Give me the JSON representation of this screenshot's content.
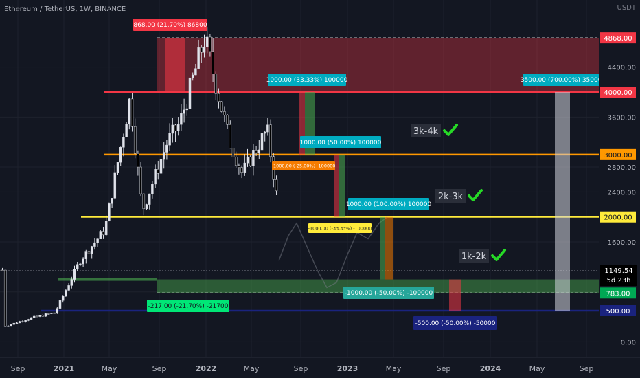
{
  "header": {
    "symbol": "Ethereum / TetherUS, 1W, BINANCE",
    "currency": "USDT"
  },
  "chart_data": {
    "type": "candlestick",
    "title": "Ethereum / TetherUS, 1W, BINANCE",
    "ylabel": "USDT",
    "ylim": [
      0,
      4868
    ],
    "y_ticks": [
      "4400.00",
      "3600.00",
      "2800.00",
      "2400.00",
      "1600.00",
      "0.00"
    ],
    "x_ticks": [
      "Sep",
      "2021",
      "May",
      "Sep",
      "2022",
      "May",
      "Sep",
      "2023",
      "May",
      "Sep",
      "2024",
      "May",
      "Sep"
    ],
    "x_ticks_bold": [
      "2021",
      "2022",
      "2023",
      "2024"
    ],
    "last_price": "1149.54",
    "countdown": "5d 23h",
    "horizontal_levels": [
      {
        "value": 4868,
        "label": "4868.00",
        "color": "#f23645"
      },
      {
        "value": 4000,
        "label": "4000.00",
        "color": "#f23645"
      },
      {
        "value": 3000,
        "label": "3000.00",
        "color": "#ff9800"
      },
      {
        "value": 2000,
        "label": "2000.00",
        "color": "#ffeb3b"
      },
      {
        "value": 1000,
        "label": "1000.00",
        "color": "#4caf50"
      },
      {
        "value": 783,
        "label": "783.00",
        "color": "#4caf50"
      },
      {
        "value": 500,
        "label": "500.00",
        "color": "#1a237e"
      }
    ],
    "zone_labels": [
      {
        "text": "3k-4k",
        "mid": 3400
      },
      {
        "text": "2k-3k",
        "mid": 2350
      },
      {
        "text": "1k-2k",
        "mid": 1380
      }
    ],
    "measure_annotations": [
      "868.00 (21.70%) 86800",
      "1000.00 (33.33%) 100000",
      "3500.00 (700.00%) 350000",
      "1000.00 (50.00%) 100000",
      "-1000.00 (-25.00%) -100000",
      "1000.00 (100.00%) 100000",
      "-1000.00 (-33.33%) -100000",
      "-217.00 (-21.70%) -21700",
      "-1000.00 (-50.00%) -100000",
      "-500.00 (-50.00%) -50000"
    ],
    "series_price_path": [
      [
        "2020-07",
        250
      ],
      [
        "2020-09",
        380
      ],
      [
        "2020-11",
        470
      ],
      [
        "2021-01",
        1300
      ],
      [
        "2021-03",
        1800
      ],
      [
        "2021-05",
        3900
      ],
      [
        "2021-06",
        2100
      ],
      [
        "2021-08",
        3200
      ],
      [
        "2021-09",
        3500
      ],
      [
        "2021-11",
        4868
      ],
      [
        "2022-01",
        3200
      ],
      [
        "2022-02",
        2700
      ],
      [
        "2022-04",
        3400
      ],
      [
        "2022-05",
        2000
      ],
      [
        "2022-06",
        1100
      ],
      [
        "2022-07",
        1149.54
      ]
    ]
  }
}
